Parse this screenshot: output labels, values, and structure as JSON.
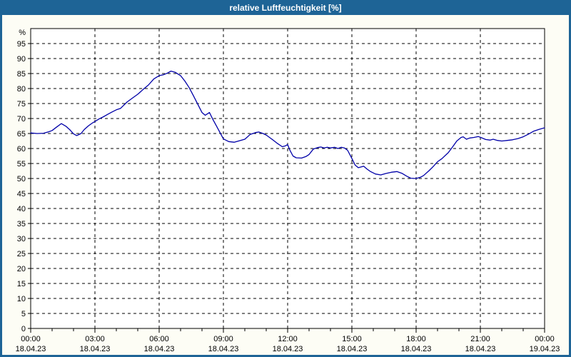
{
  "window": {
    "title": "relative Luftfeuchtigkeit [%]",
    "titlebar_color": "#1e6496",
    "border_color": "#1e6496",
    "background_color": "#fdfdf5"
  },
  "chart_data": {
    "type": "line",
    "title": "relative Luftfeuchtigkeit [%]",
    "ylabel": "%",
    "xlabel": "",
    "grid": "dashed",
    "legend": "none",
    "plot_bg": "#ffffff",
    "xlim": [
      0,
      24
    ],
    "ylim": [
      0,
      100
    ],
    "y_ticks": [
      0,
      5,
      10,
      15,
      20,
      25,
      30,
      35,
      40,
      45,
      50,
      55,
      60,
      65,
      70,
      75,
      80,
      85,
      90,
      95
    ],
    "x_ticks": [
      {
        "hour": 0,
        "time": "00:00",
        "date": "18.04.23"
      },
      {
        "hour": 3,
        "time": "03:00",
        "date": "18.04.23"
      },
      {
        "hour": 6,
        "time": "06:00",
        "date": "18.04.23"
      },
      {
        "hour": 9,
        "time": "09:00",
        "date": "18.04.23"
      },
      {
        "hour": 12,
        "time": "12:00",
        "date": "18.04.23"
      },
      {
        "hour": 15,
        "time": "15:00",
        "date": "18.04.23"
      },
      {
        "hour": 18,
        "time": "18:00",
        "date": "18.04.23"
      },
      {
        "hour": 21,
        "time": "21:00",
        "date": "18.04.23"
      },
      {
        "hour": 24,
        "time": "00:00",
        "date": "19.04.23"
      }
    ],
    "x_minor_tick_every_hours": 1,
    "series": [
      {
        "name": "relative Luftfeuchtigkeit",
        "color": "#0000a8",
        "points": [
          [
            0,
            65.2
          ],
          [
            0.3,
            65
          ],
          [
            0.6,
            65.1
          ],
          [
            0.85,
            65.6
          ],
          [
            1,
            66
          ],
          [
            1.2,
            67.1
          ],
          [
            1.43,
            68.3
          ],
          [
            1.65,
            67.4
          ],
          [
            1.85,
            66.1
          ],
          [
            2,
            64.9
          ],
          [
            2.15,
            64.3
          ],
          [
            2.35,
            65
          ],
          [
            2.5,
            66.3
          ],
          [
            2.7,
            67.6
          ],
          [
            2.9,
            68.6
          ],
          [
            3,
            69
          ],
          [
            3.2,
            69.9
          ],
          [
            3.4,
            70.6
          ],
          [
            3.6,
            71.4
          ],
          [
            3.8,
            72.2
          ],
          [
            4,
            72.9
          ],
          [
            4.2,
            73.4
          ],
          [
            4.5,
            75.5
          ],
          [
            4.75,
            76.8
          ],
          [
            5,
            78.1
          ],
          [
            5.25,
            79.7
          ],
          [
            5.5,
            81.2
          ],
          [
            5.75,
            83.2
          ],
          [
            6,
            84.3
          ],
          [
            6.2,
            84.6
          ],
          [
            6.4,
            85.2
          ],
          [
            6.55,
            85.8
          ],
          [
            6.75,
            85.4
          ],
          [
            7,
            84.3
          ],
          [
            7.2,
            82.5
          ],
          [
            7.4,
            80.3
          ],
          [
            7.6,
            77.6
          ],
          [
            7.8,
            74.8
          ],
          [
            8,
            72
          ],
          [
            8.15,
            71.1
          ],
          [
            8.35,
            72
          ],
          [
            8.5,
            69.8
          ],
          [
            8.7,
            67.2
          ],
          [
            8.85,
            65.2
          ],
          [
            9,
            63.2
          ],
          [
            9.25,
            62.3
          ],
          [
            9.5,
            62.1
          ],
          [
            9.75,
            62.6
          ],
          [
            10,
            63.1
          ],
          [
            10.25,
            64.7
          ],
          [
            10.5,
            65.3
          ],
          [
            10.65,
            65.5
          ],
          [
            10.85,
            65
          ],
          [
            11,
            64.5
          ],
          [
            11.25,
            63.2
          ],
          [
            11.5,
            61.8
          ],
          [
            11.75,
            60.6
          ],
          [
            11.9,
            60.9
          ],
          [
            12,
            61.3
          ],
          [
            12.1,
            59.5
          ],
          [
            12.25,
            57.5
          ],
          [
            12.4,
            56.9
          ],
          [
            12.65,
            56.8
          ],
          [
            12.85,
            57.3
          ],
          [
            13,
            58
          ],
          [
            13.2,
            59.8
          ],
          [
            13.4,
            60.3
          ],
          [
            13.55,
            60.5
          ],
          [
            13.7,
            60.2
          ],
          [
            13.85,
            60.4
          ],
          [
            14,
            60.2
          ],
          [
            14.2,
            60.4
          ],
          [
            14.35,
            60
          ],
          [
            14.5,
            60.4
          ],
          [
            14.65,
            60.2
          ],
          [
            14.8,
            59.4
          ],
          [
            15,
            56.7
          ],
          [
            15.15,
            54.5
          ],
          [
            15.3,
            53.6
          ],
          [
            15.45,
            53.9
          ],
          [
            15.55,
            54.1
          ],
          [
            15.7,
            53.2
          ],
          [
            15.85,
            52.4
          ],
          [
            16.1,
            51.5
          ],
          [
            16.35,
            51.2
          ],
          [
            16.6,
            51.7
          ],
          [
            16.85,
            52.1
          ],
          [
            17.1,
            52.3
          ],
          [
            17.35,
            51.7
          ],
          [
            17.55,
            50.8
          ],
          [
            17.75,
            50.1
          ],
          [
            18,
            50
          ],
          [
            18.2,
            50.4
          ],
          [
            18.35,
            51
          ],
          [
            18.6,
            52.6
          ],
          [
            18.8,
            54
          ],
          [
            19,
            55.6
          ],
          [
            19.2,
            56.6
          ],
          [
            19.5,
            58.6
          ],
          [
            19.7,
            60.5
          ],
          [
            19.9,
            62.5
          ],
          [
            20.1,
            63.7
          ],
          [
            20.2,
            63.9
          ],
          [
            20.35,
            63.1
          ],
          [
            20.5,
            63.5
          ],
          [
            20.7,
            63.7
          ],
          [
            20.9,
            64
          ],
          [
            21.05,
            63.6
          ],
          [
            21.25,
            63
          ],
          [
            21.45,
            62.8
          ],
          [
            21.6,
            63.1
          ],
          [
            21.8,
            62.7
          ],
          [
            22,
            62.5
          ],
          [
            22.25,
            62.7
          ],
          [
            22.5,
            62.9
          ],
          [
            22.75,
            63.3
          ],
          [
            23,
            63.9
          ],
          [
            23.25,
            64.8
          ],
          [
            23.5,
            65.8
          ],
          [
            23.75,
            66.4
          ],
          [
            24,
            66.9
          ]
        ]
      }
    ]
  }
}
